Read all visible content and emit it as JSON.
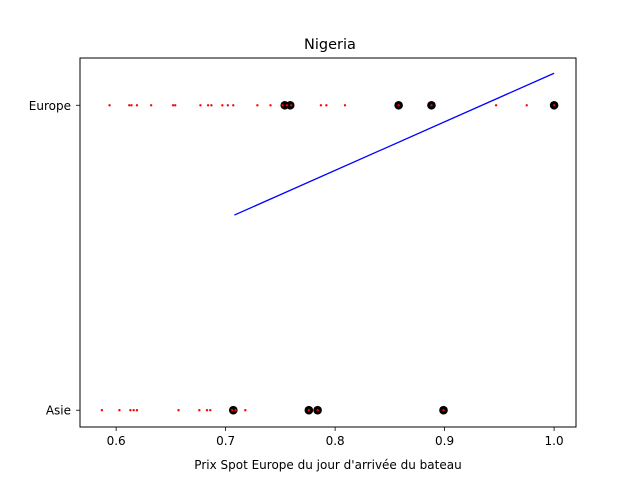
{
  "chart_data": {
    "type": "scatter",
    "title": "Nigeria",
    "xlabel": "Prix Spot Europe du jour d'arrivée du bateau",
    "ylabel": "",
    "categories": [
      "Asie",
      "Europe"
    ],
    "xlim": [
      0.567,
      1.02
    ],
    "ylim": [
      -0.055,
      1.155
    ],
    "xticks": [
      0.6,
      0.7,
      0.8,
      0.9,
      1.0
    ],
    "xtick_labels": [
      "0.6",
      "0.7",
      "0.8",
      "0.9",
      "1.0"
    ],
    "yticks": [
      0,
      1
    ],
    "ytick_labels": [
      "Asie",
      "Europe"
    ],
    "grid": false,
    "series": [
      {
        "marker": "small-red-dots",
        "color": "#ff0000",
        "points": [
          {
            "x": 0.594,
            "y": 1
          },
          {
            "x": 0.612,
            "y": 1
          },
          {
            "x": 0.614,
            "y": 1
          },
          {
            "x": 0.619,
            "y": 1
          },
          {
            "x": 0.632,
            "y": 1
          },
          {
            "x": 0.652,
            "y": 1
          },
          {
            "x": 0.654,
            "y": 1
          },
          {
            "x": 0.677,
            "y": 1
          },
          {
            "x": 0.684,
            "y": 1
          },
          {
            "x": 0.687,
            "y": 1
          },
          {
            "x": 0.697,
            "y": 1
          },
          {
            "x": 0.702,
            "y": 1
          },
          {
            "x": 0.707,
            "y": 1
          },
          {
            "x": 0.729,
            "y": 1
          },
          {
            "x": 0.741,
            "y": 1
          },
          {
            "x": 0.752,
            "y": 1
          },
          {
            "x": 0.756,
            "y": 1
          },
          {
            "x": 0.76,
            "y": 1
          },
          {
            "x": 0.787,
            "y": 1
          },
          {
            "x": 0.792,
            "y": 1
          },
          {
            "x": 0.809,
            "y": 1
          },
          {
            "x": 0.858,
            "y": 1
          },
          {
            "x": 0.888,
            "y": 1
          },
          {
            "x": 0.947,
            "y": 1
          },
          {
            "x": 0.975,
            "y": 1
          },
          {
            "x": 1.0,
            "y": 1
          },
          {
            "x": 0.587,
            "y": 0
          },
          {
            "x": 0.603,
            "y": 0
          },
          {
            "x": 0.613,
            "y": 0
          },
          {
            "x": 0.616,
            "y": 0
          },
          {
            "x": 0.619,
            "y": 0
          },
          {
            "x": 0.657,
            "y": 0
          },
          {
            "x": 0.676,
            "y": 0
          },
          {
            "x": 0.683,
            "y": 0
          },
          {
            "x": 0.686,
            "y": 0
          },
          {
            "x": 0.706,
            "y": 0
          },
          {
            "x": 0.709,
            "y": 0
          },
          {
            "x": 0.718,
            "y": 0
          },
          {
            "x": 0.776,
            "y": 0
          },
          {
            "x": 0.784,
            "y": 0
          },
          {
            "x": 0.899,
            "y": 0
          }
        ]
      },
      {
        "marker": "black-circles",
        "color": "#000000",
        "points": [
          {
            "x": 0.754,
            "y": 1
          },
          {
            "x": 0.759,
            "y": 1
          },
          {
            "x": 0.858,
            "y": 1
          },
          {
            "x": 0.888,
            "y": 1
          },
          {
            "x": 1.0,
            "y": 1
          },
          {
            "x": 0.707,
            "y": 0
          },
          {
            "x": 0.776,
            "y": 0
          },
          {
            "x": 0.784,
            "y": 0
          },
          {
            "x": 0.899,
            "y": 0
          }
        ]
      },
      {
        "type": "line",
        "color": "#0000ff",
        "x": [
          0.708,
          1.0
        ],
        "y": [
          0.64,
          1.105
        ]
      }
    ]
  }
}
